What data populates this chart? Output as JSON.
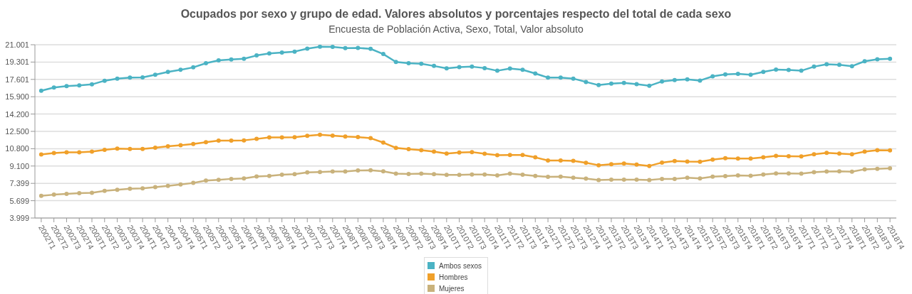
{
  "chart_data": {
    "type": "line",
    "title": "Ocupados por sexo y grupo de edad. Valores absolutos y porcentajes respecto del total de cada sexo",
    "subtitle": "Encuesta de Población Activa, Sexo, Total, Valor absoluto",
    "categories": [
      "2002T1",
      "2002T2",
      "2002T3",
      "2002T4",
      "2003T1",
      "2003T2",
      "2003T3",
      "2003T4",
      "2004T1",
      "2004T2",
      "2004T3",
      "2004T4",
      "2005T1",
      "2005T2",
      "2005T3",
      "2005T4",
      "2006T1",
      "2006T2",
      "2006T3",
      "2006T4",
      "2007T1",
      "2007T2",
      "2007T3",
      "2007T4",
      "2008T1",
      "2008T2",
      "2008T3",
      "2008T4",
      "2009T1",
      "2009T2",
      "2009T3",
      "2009T4",
      "2010T1",
      "2010T2",
      "2010T3",
      "2010T4",
      "2011T1",
      "2011T2",
      "2011T3",
      "2011T4",
      "2012T1",
      "2012T2",
      "2012T3",
      "2012T4",
      "2013T1",
      "2013T2",
      "2013T3",
      "2013T4",
      "2014T1",
      "2014T2",
      "2014T3",
      "2014T4",
      "2015T1",
      "2015T2",
      "2015T3",
      "2015T4",
      "2016T1",
      "2016T2",
      "2016T3",
      "2016T4",
      "2017T1",
      "2017T2",
      "2017T3",
      "2017T4",
      "2018T1",
      "2018T2",
      "2018T3",
      "2018T4"
    ],
    "series": [
      {
        "name": "Ambos sexos",
        "color": "#4bb3c4",
        "values": [
          16490,
          16800,
          16940,
          17010,
          17110,
          17470,
          17680,
          17780,
          17800,
          18060,
          18330,
          18540,
          18780,
          19190,
          19470,
          19550,
          19620,
          19950,
          20140,
          20240,
          20330,
          20620,
          20810,
          20790,
          20670,
          20690,
          20600,
          20090,
          19310,
          19190,
          19140,
          18920,
          18690,
          18810,
          18850,
          18710,
          18450,
          18660,
          18540,
          18180,
          17780,
          17780,
          17680,
          17350,
          17040,
          17180,
          17250,
          17130,
          16970,
          17400,
          17540,
          17610,
          17490,
          17900,
          18090,
          18140,
          18060,
          18330,
          18570,
          18520,
          18450,
          18850,
          19090,
          19040,
          18900,
          19380,
          19570,
          19620
        ]
      },
      {
        "name": "Hombres",
        "color": "#f0a02a",
        "values": [
          10230,
          10380,
          10450,
          10450,
          10520,
          10690,
          10810,
          10780,
          10780,
          10900,
          11040,
          11140,
          11260,
          11430,
          11590,
          11590,
          11620,
          11760,
          11900,
          11900,
          11930,
          12070,
          12170,
          12090,
          12000,
          11950,
          11830,
          11400,
          10880,
          10760,
          10660,
          10520,
          10330,
          10420,
          10470,
          10300,
          10160,
          10180,
          10180,
          9950,
          9640,
          9640,
          9610,
          9420,
          9180,
          9280,
          9350,
          9250,
          9110,
          9440,
          9590,
          9540,
          9520,
          9730,
          9870,
          9830,
          9830,
          9950,
          10090,
          10060,
          10040,
          10260,
          10400,
          10330,
          10260,
          10520,
          10660,
          10640
        ]
      },
      {
        "name": "Mujeres",
        "color": "#c9b27c",
        "values": [
          6170,
          6290,
          6360,
          6440,
          6480,
          6670,
          6770,
          6870,
          6910,
          7030,
          7150,
          7290,
          7440,
          7680,
          7750,
          7840,
          7890,
          8080,
          8130,
          8250,
          8300,
          8470,
          8510,
          8560,
          8560,
          8660,
          8680,
          8580,
          8350,
          8320,
          8350,
          8300,
          8230,
          8230,
          8270,
          8270,
          8180,
          8350,
          8250,
          8130,
          8040,
          8060,
          7960,
          7870,
          7720,
          7770,
          7770,
          7770,
          7720,
          7840,
          7840,
          7960,
          7890,
          8060,
          8110,
          8180,
          8150,
          8270,
          8370,
          8370,
          8350,
          8490,
          8560,
          8580,
          8540,
          8780,
          8820,
          8870
        ]
      }
    ],
    "ylim": [
      3999,
      21001
    ],
    "yticks": [
      {
        "value": 3999,
        "label": "3.999"
      },
      {
        "value": 5699,
        "label": "5.699"
      },
      {
        "value": 7399,
        "label": "7.399"
      },
      {
        "value": 9100,
        "label": "9.100"
      },
      {
        "value": 10800,
        "label": "10.800"
      },
      {
        "value": 12500,
        "label": "12.500"
      },
      {
        "value": 14200,
        "label": "14.200"
      },
      {
        "value": 15900,
        "label": "15.900"
      },
      {
        "value": 17601,
        "label": "17.601"
      },
      {
        "value": 19301,
        "label": "19.301"
      },
      {
        "value": 21001,
        "label": "21.001"
      }
    ],
    "grid": "y",
    "legend": "bottom",
    "marker": "circle",
    "line_style": "solid"
  }
}
